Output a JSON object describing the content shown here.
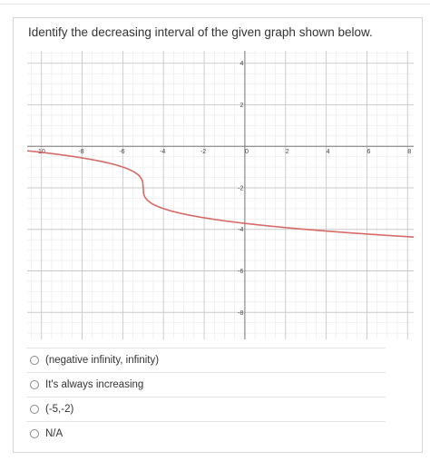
{
  "question": {
    "text": "Identify the decreasing interval of the given graph shown below."
  },
  "graph": {
    "x_ticks": [
      "-10",
      "-8",
      "-6",
      "-4",
      "-2",
      "0",
      "2",
      "4",
      "6",
      "8"
    ],
    "y_ticks": [
      "4",
      "2",
      "-2",
      "-4",
      "-6",
      "-8"
    ],
    "curve_color": "#d86a66"
  },
  "options": [
    {
      "label": "(negative infinity, infinity)"
    },
    {
      "label": "It's always increasing"
    },
    {
      "label": "(-5,-2)"
    },
    {
      "label": "N/A"
    }
  ]
}
